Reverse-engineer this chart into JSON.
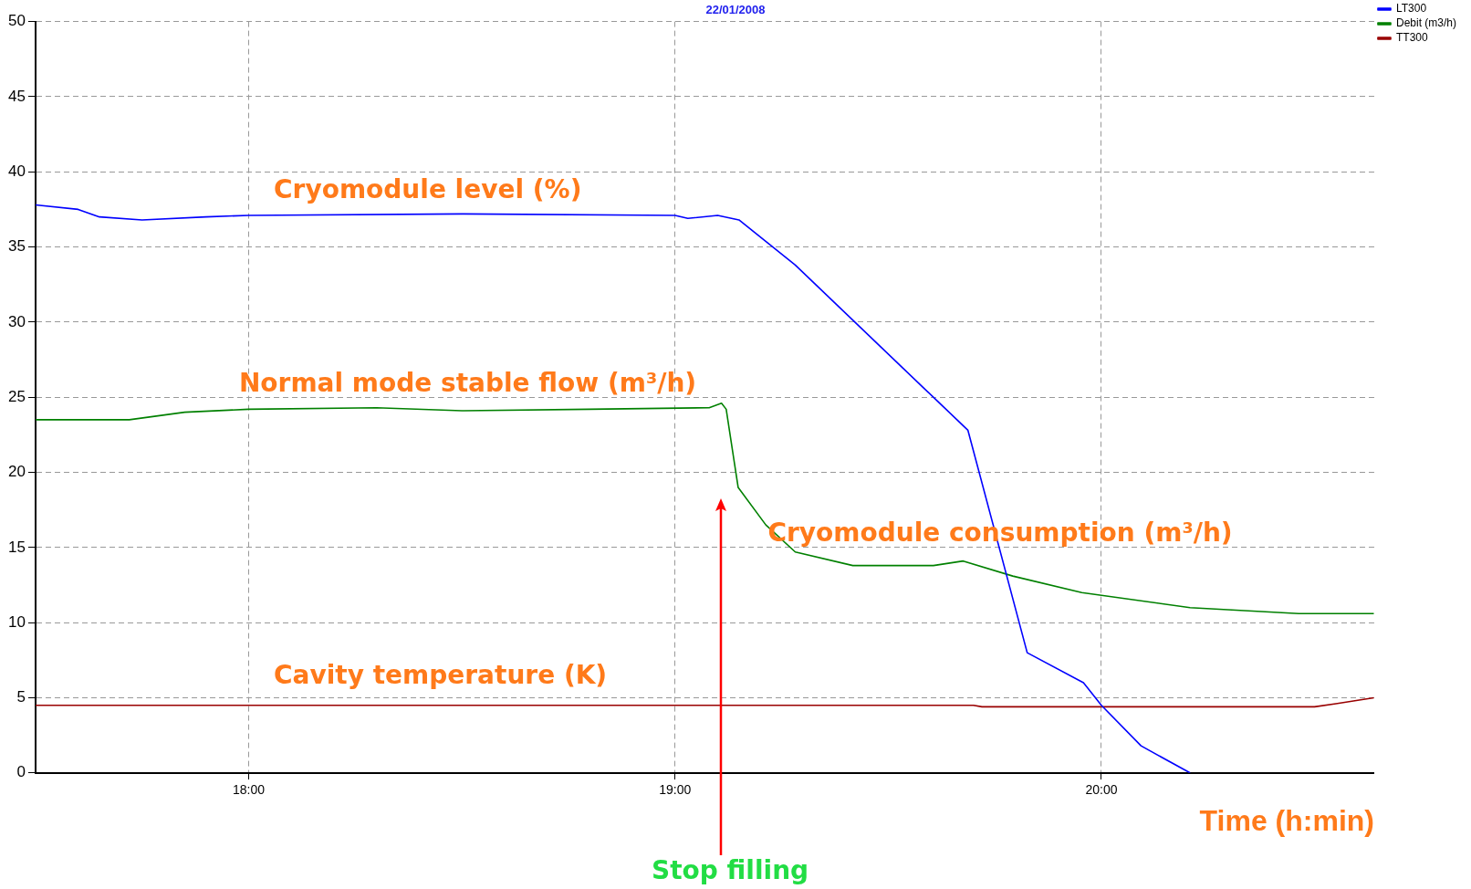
{
  "chart_data": {
    "type": "line",
    "title": "22/01/2008",
    "xlabel": "Time (h:min)",
    "xlim": [
      17.5,
      20.64
    ],
    "xticks": [
      {
        "value": 18,
        "label": "18:00"
      },
      {
        "value": 19,
        "label": "19:00"
      },
      {
        "value": 20,
        "label": "20:00"
      }
    ],
    "ylim": [
      0,
      50
    ],
    "yticks": [
      0,
      5,
      10,
      15,
      20,
      25,
      30,
      35,
      40,
      45,
      50
    ],
    "grid": true,
    "legend": "top right",
    "marker": "none",
    "line_style": "solid",
    "series": [
      {
        "name": "LT300",
        "color": "#0000ff",
        "x": [
          17.5,
          17.6,
          17.65,
          17.75,
          17.9,
          18.0,
          18.5,
          19.0,
          19.03,
          19.1,
          19.15,
          19.282,
          19.687,
          19.826,
          19.958,
          20.0,
          20.093,
          20.208
        ],
        "values": [
          37.8,
          37.5,
          37.0,
          36.8,
          37.0,
          37.1,
          37.2,
          37.1,
          36.9,
          37.1,
          36.8,
          33.8,
          22.8,
          8.0,
          6.0,
          4.5,
          1.8,
          0
        ]
      },
      {
        "name": "Debit (m3/h)",
        "color": "#008000",
        "x": [
          17.5,
          17.72,
          17.85,
          18.0,
          18.3,
          18.5,
          18.8,
          19.08,
          19.109,
          19.12,
          19.148,
          19.213,
          19.282,
          19.417,
          19.606,
          19.676,
          19.792,
          19.954,
          20.208,
          20.463,
          20.639
        ],
        "values": [
          23.5,
          23.5,
          24.0,
          24.2,
          24.3,
          24.1,
          24.2,
          24.3,
          24.6,
          24.2,
          19.0,
          16.5,
          14.7,
          13.8,
          13.8,
          14.1,
          13.1,
          12.0,
          11.0,
          10.6,
          10.6
        ]
      },
      {
        "name": "TT300",
        "color": "#990000",
        "x": [
          17.5,
          19.7,
          19.72,
          20.5,
          20.55,
          20.639
        ],
        "values": [
          4.5,
          4.5,
          4.4,
          4.4,
          4.6,
          5.0
        ]
      }
    ],
    "annotations": [
      "Cryomodule level (%)",
      "Normal mode stable flow (m³/h)",
      "Cryomodule consumption (m³/h)",
      "Cavity temperature (K)",
      "Stop filling"
    ]
  }
}
